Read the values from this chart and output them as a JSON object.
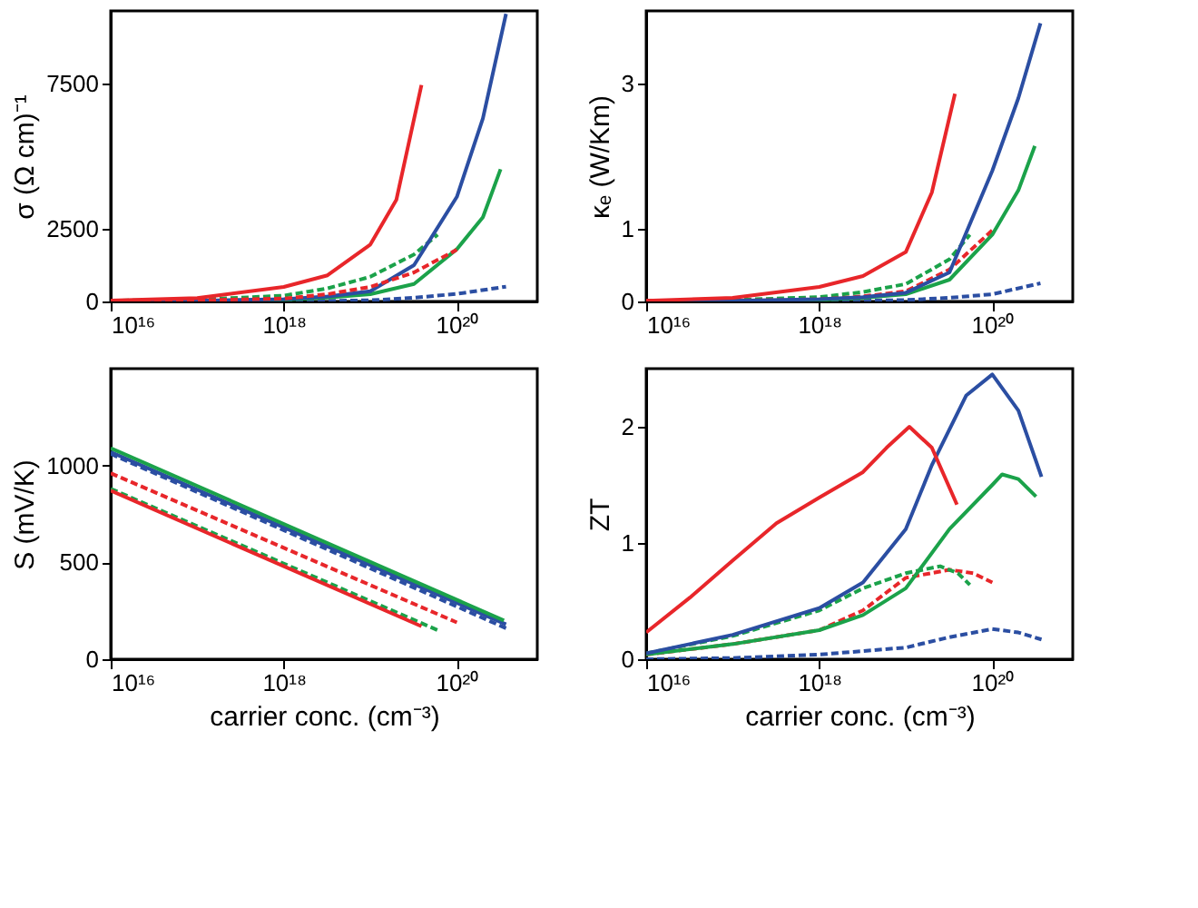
{
  "chart_data": [
    {
      "type": "line",
      "ylabel": "σ (Ω cm)⁻¹",
      "log": "x",
      "grid": false,
      "xlim": [
        1e+16,
        8.5e+20
      ],
      "xticks": [
        {
          "value": 1e+16,
          "label": "10¹⁶"
        },
        {
          "value": 1e+18,
          "label": "10¹⁸"
        },
        {
          "value": 1e+20,
          "label": "10²⁰"
        }
      ],
      "ylim": [
        0,
        10000
      ],
      "yticks": [
        0,
        2500,
        7500
      ],
      "series": [
        {
          "color": "#2b4ea2",
          "line_style": "dashed",
          "x": [
            1e+16,
            1e+18,
            1e+19,
            3.2e+19,
            1e+20,
            3.7e+20
          ],
          "values": [
            0,
            0,
            40,
            130,
            260,
            510
          ]
        },
        {
          "color": "#1ba24a",
          "line_style": "dashed",
          "x": [
            1e+16,
            1e+17,
            1e+18,
            3.2e+18,
            1e+19,
            3.2e+19,
            6e+19
          ],
          "values": [
            30,
            60,
            200,
            450,
            850,
            1620,
            2300
          ]
        },
        {
          "color": "#1ba24a",
          "line_style": "solid",
          "x": [
            1e+16,
            1e+17,
            1e+18,
            3.2e+18,
            1e+19,
            3.2e+19,
            1e+20,
            2e+20,
            3.2e+20
          ],
          "values": [
            0,
            20,
            60,
            130,
            250,
            600,
            1800,
            2900,
            4550
          ]
        },
        {
          "color": "#2b4ea2",
          "line_style": "solid",
          "x": [
            1e+16,
            1e+17,
            1e+18,
            3.2e+18,
            1e+19,
            3.2e+19,
            1e+20,
            2e+20,
            3.7e+20
          ],
          "values": [
            0,
            20,
            80,
            170,
            350,
            1250,
            3600,
            6300,
            9900
          ]
        },
        {
          "color": "#e8262a",
          "line_style": "solid",
          "x": [
            1e+16,
            1e+17,
            1e+18,
            3.2e+18,
            1e+19,
            2e+19,
            3.9e+19
          ],
          "values": [
            30,
            120,
            500,
            900,
            1960,
            3500,
            7450
          ]
        },
        {
          "color": "#e8262a",
          "line_style": "dashed",
          "x": [
            1e+16,
            1e+17,
            1e+18,
            3.2e+18,
            1e+19,
            3.2e+19,
            1e+20
          ],
          "values": [
            20,
            40,
            100,
            250,
            500,
            1000,
            1780
          ]
        }
      ]
    },
    {
      "type": "line",
      "ylabel": "κₑ (W/Km)",
      "log": "x",
      "grid": false,
      "xlim": [
        1e+16,
        8.5e+20
      ],
      "xticks": [
        {
          "value": 1e+16,
          "label": "10¹⁶"
        },
        {
          "value": 1e+18,
          "label": "10¹⁸"
        },
        {
          "value": 1e+20,
          "label": "10²⁰"
        }
      ],
      "ylim": [
        0,
        4
      ],
      "yticks": [
        0,
        1,
        3
      ],
      "series": [
        {
          "color": "#2b4ea2",
          "line_style": "dashed",
          "x": [
            1e+16,
            1e+18,
            1e+19,
            3.2e+19,
            1e+20,
            3.6e+20
          ],
          "values": [
            0,
            0,
            0.02,
            0.05,
            0.1,
            0.25
          ]
        },
        {
          "color": "#1ba24a",
          "line_style": "dashed",
          "x": [
            1e+16,
            1e+17,
            1e+18,
            3.2e+18,
            1e+19,
            3.2e+19,
            5.5e+19
          ],
          "values": [
            0.01,
            0.02,
            0.06,
            0.13,
            0.24,
            0.58,
            0.92
          ]
        },
        {
          "color": "#e8262a",
          "line_style": "dashed",
          "x": [
            1e+16,
            1e+17,
            1e+18,
            3.2e+18,
            1e+19,
            3.2e+19,
            1e+20
          ],
          "values": [
            0.01,
            0.01,
            0.03,
            0.07,
            0.14,
            0.44,
            0.98
          ]
        },
        {
          "color": "#1ba24a",
          "line_style": "solid",
          "x": [
            1e+16,
            1e+17,
            1e+18,
            3.2e+18,
            1e+19,
            3.2e+19,
            1e+20,
            2e+20,
            3.1e+20
          ],
          "values": [
            0,
            0.01,
            0.02,
            0.05,
            0.1,
            0.3,
            0.92,
            1.53,
            2.14
          ]
        },
        {
          "color": "#2b4ea2",
          "line_style": "solid",
          "x": [
            1e+16,
            1e+17,
            1e+18,
            3.2e+18,
            1e+19,
            3.2e+19,
            1e+20,
            2e+20,
            3.6e+20
          ],
          "values": [
            0,
            0.01,
            0.03,
            0.06,
            0.12,
            0.4,
            1.8,
            2.8,
            3.83
          ]
        },
        {
          "color": "#e8262a",
          "line_style": "solid",
          "x": [
            1e+16,
            1e+17,
            1e+18,
            3.2e+18,
            1e+19,
            2e+19,
            3.7e+19
          ],
          "values": [
            0.01,
            0.05,
            0.2,
            0.35,
            0.68,
            1.5,
            2.86
          ]
        }
      ]
    },
    {
      "type": "line",
      "ylabel": "S (mV/K)",
      "xlabel": "carrier conc. (cm⁻³)",
      "log": "x",
      "grid": false,
      "xlim": [
        1e+16,
        8.5e+20
      ],
      "xticks": [
        {
          "value": 1e+16,
          "label": "10¹⁶"
        },
        {
          "value": 1e+18,
          "label": "10¹⁸"
        },
        {
          "value": 1e+20,
          "label": "10²⁰"
        }
      ],
      "ylim": [
        0,
        1500
      ],
      "yticks": [
        0,
        500,
        1000
      ],
      "series": [
        {
          "color": "#2b4ea2",
          "line_style": "solid",
          "x": [
            1e+16,
            3.7e+20
          ],
          "values": [
            1070,
            180
          ]
        },
        {
          "color": "#2b4ea2",
          "line_style": "dashed",
          "x": [
            1e+16,
            3.7e+20
          ],
          "values": [
            1060,
            160
          ]
        },
        {
          "color": "#e8262a",
          "line_style": "dashed",
          "x": [
            1e+16,
            1e+20
          ],
          "values": [
            960,
            190
          ]
        },
        {
          "color": "#1ba24a",
          "line_style": "dashed",
          "x": [
            1e+16,
            6e+19
          ],
          "values": [
            880,
            150
          ]
        },
        {
          "color": "#e8262a",
          "line_style": "solid",
          "x": [
            1e+16,
            3.9e+19
          ],
          "values": [
            870,
            170
          ]
        },
        {
          "color": "#1ba24a",
          "line_style": "solid",
          "x": [
            1e+16,
            3.5e+20
          ],
          "values": [
            1090,
            200
          ]
        }
      ]
    },
    {
      "type": "line",
      "ylabel": "ZT",
      "xlabel": "carrier conc. (cm⁻³)",
      "log": "x",
      "grid": false,
      "xlim": [
        1e+16,
        8.5e+20
      ],
      "xticks": [
        {
          "value": 1e+16,
          "label": "10¹⁶"
        },
        {
          "value": 1e+18,
          "label": "10¹⁸"
        },
        {
          "value": 1e+20,
          "label": "10²⁰"
        }
      ],
      "ylim": [
        0,
        2.5
      ],
      "yticks": [
        0,
        1,
        2
      ],
      "series": [
        {
          "color": "#2b4ea2",
          "line_style": "dashed",
          "x": [
            1e+16,
            1e+17,
            1e+18,
            1e+19,
            3.2e+19,
            1e+20,
            2e+20,
            3.7e+20
          ],
          "values": [
            0,
            0.01,
            0.04,
            0.1,
            0.19,
            0.26,
            0.23,
            0.17
          ]
        },
        {
          "color": "#e8262a",
          "line_style": "dashed",
          "x": [
            1e+16,
            1e+17,
            1e+18,
            3.2e+18,
            1e+19,
            3.2e+19,
            6e+19,
            1e+20
          ],
          "values": [
            0.04,
            0.13,
            0.25,
            0.42,
            0.7,
            0.77,
            0.74,
            0.66
          ]
        },
        {
          "color": "#1ba24a",
          "line_style": "dashed",
          "x": [
            1e+16,
            1e+17,
            1e+18,
            3.2e+18,
            1e+19,
            2.5e+19,
            4e+19,
            5.5e+19
          ],
          "values": [
            0.05,
            0.2,
            0.42,
            0.61,
            0.74,
            0.8,
            0.74,
            0.64
          ]
        },
        {
          "color": "#1ba24a",
          "line_style": "solid",
          "x": [
            1e+16,
            1e+17,
            1e+18,
            3.2e+18,
            1e+19,
            3.2e+19,
            1e+20,
            1.3e+20,
            2e+20,
            3.2e+20
          ],
          "values": [
            0.04,
            0.13,
            0.25,
            0.38,
            0.61,
            1.12,
            1.5,
            1.59,
            1.55,
            1.4
          ]
        },
        {
          "color": "#2b4ea2",
          "line_style": "solid",
          "x": [
            1e+16,
            1e+17,
            1e+18,
            3.2e+18,
            1e+19,
            2e+19,
            5e+19,
            1e+20,
            2e+20,
            3.7e+20
          ],
          "values": [
            0.05,
            0.21,
            0.44,
            0.66,
            1.12,
            1.67,
            2.27,
            2.45,
            2.14,
            1.57
          ]
        },
        {
          "color": "#e8262a",
          "line_style": "solid",
          "x": [
            1e+16,
            3.2e+16,
            1e+17,
            3.2e+17,
            1e+18,
            3.2e+18,
            6e+18,
            1.1e+19,
            2e+19,
            3.9e+19
          ],
          "values": [
            0.23,
            0.53,
            0.85,
            1.17,
            1.39,
            1.61,
            1.82,
            2.0,
            1.82,
            1.33
          ]
        }
      ]
    }
  ]
}
